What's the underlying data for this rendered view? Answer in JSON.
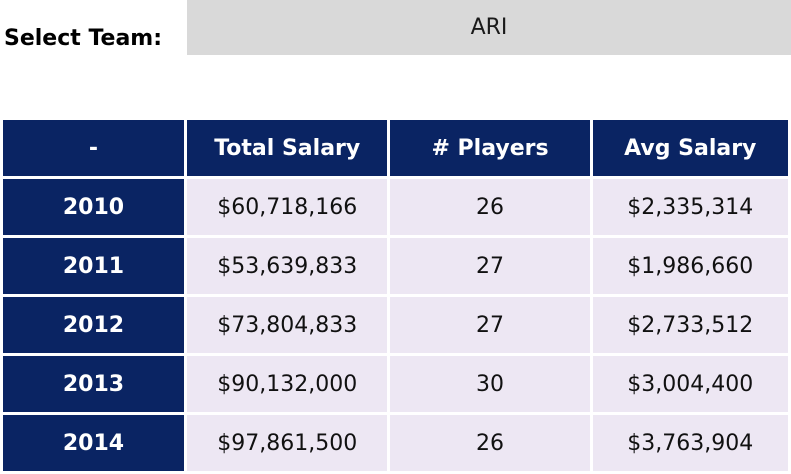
{
  "selector": {
    "label": "Select Team:",
    "value": "ARI"
  },
  "table": {
    "headers": [
      "-",
      "Total Salary",
      "# Players",
      "Avg Salary"
    ],
    "rows": [
      {
        "year": "2010",
        "total": "$60,718,166",
        "players": "26",
        "avg": "$2,335,314"
      },
      {
        "year": "2011",
        "total": "$53,639,833",
        "players": "27",
        "avg": "$1,986,660"
      },
      {
        "year": "2012",
        "total": "$73,804,833",
        "players": "27",
        "avg": "$2,733,512"
      },
      {
        "year": "2013",
        "total": "$90,132,000",
        "players": "30",
        "avg": "$3,004,400"
      },
      {
        "year": "2014",
        "total": "$97,861,500",
        "players": "26",
        "avg": "$3,763,904"
      }
    ]
  },
  "colors": {
    "header_bg": "#0a2463",
    "cell_bg": "#ede7f3",
    "select_bg": "#d9d9d9"
  }
}
